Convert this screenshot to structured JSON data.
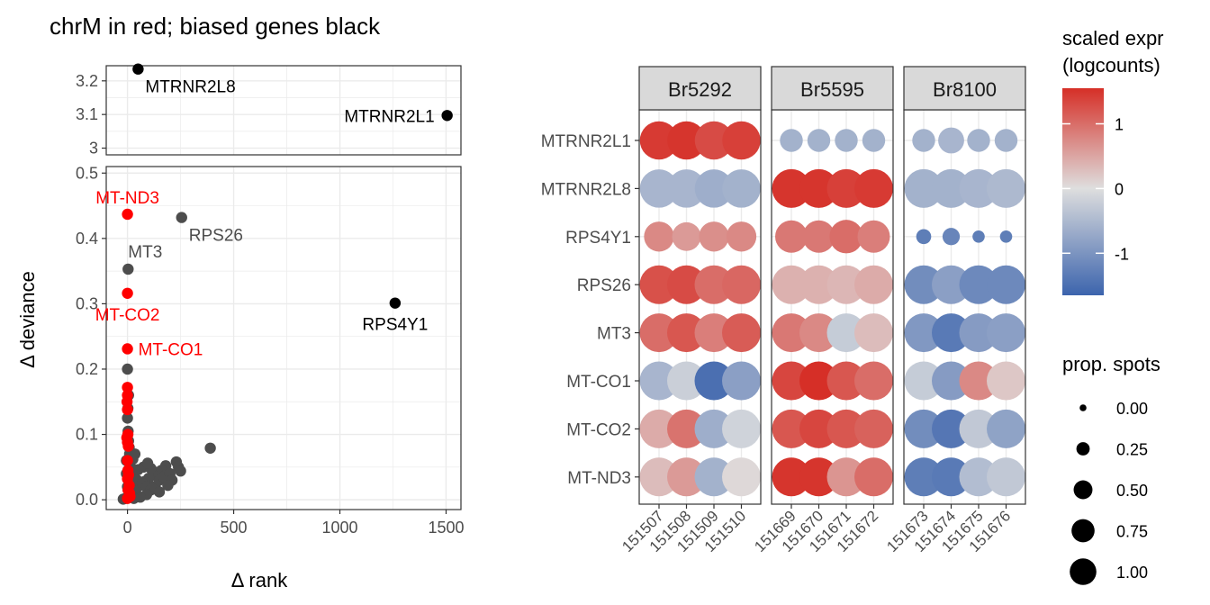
{
  "colors": {
    "chrM": "#ff0000",
    "biased": "#000000",
    "other": "#4d4d4d",
    "grid": "#ebebeb",
    "panel_border": "#333333",
    "strip_fill": "#d9d9d9",
    "scale_low": "#3c64ad",
    "scale_mid": "#dedede",
    "scale_high": "#d62f27"
  },
  "chart_data": [
    {
      "type": "scatter",
      "title": "chrM in red; biased genes black",
      "xlabel": "Δ rank",
      "ylabel": "Δ deviance",
      "xlim": [
        -100,
        1570
      ],
      "x_ticks": [
        "0",
        "500",
        "1000",
        "1500"
      ],
      "x_tick_values": [
        0,
        500,
        1000,
        1500
      ],
      "y_break": true,
      "top_panel": {
        "ylim": [
          2.98,
          3.245
        ],
        "y_ticks": [
          "3",
          "3.1",
          "3.2"
        ],
        "y_tick_values": [
          3.0,
          3.1,
          3.2
        ]
      },
      "bottom_panel": {
        "ylim": [
          -0.015,
          0.51
        ],
        "y_ticks": [
          "0.0",
          "0.1",
          "0.2",
          "0.3",
          "0.4",
          "0.5"
        ],
        "y_tick_values": [
          0,
          0.1,
          0.2,
          0.3,
          0.4,
          0.5
        ]
      },
      "grid": true,
      "labeled_points": [
        {
          "gene": "MTRNR2L8",
          "x": 50,
          "y": 3.235,
          "group": "biased",
          "label_pos": "below-right"
        },
        {
          "gene": "MTRNR2L1",
          "x": 1505,
          "y": 3.097,
          "group": "biased",
          "label_pos": "left"
        },
        {
          "gene": "MT-ND3",
          "x": 0,
          "y": 0.437,
          "group": "chrM",
          "label_pos": "above"
        },
        {
          "gene": "RPS26",
          "x": 255,
          "y": 0.432,
          "group": "other",
          "label_pos": "below-right"
        },
        {
          "gene": "MT3",
          "x": 3,
          "y": 0.353,
          "group": "other",
          "label_pos": "above-right"
        },
        {
          "gene": "MT-CO2",
          "x": 0,
          "y": 0.316,
          "group": "chrM",
          "label_pos": "below"
        },
        {
          "gene": "RPS4Y1",
          "x": 1260,
          "y": 0.301,
          "group": "biased",
          "label_pos": "below"
        },
        {
          "gene": "MT-CO1",
          "x": 0,
          "y": 0.231,
          "group": "chrM",
          "label_pos": "right"
        }
      ],
      "other_points": [
        [
          0,
          0.2
        ],
        [
          5,
          0.16
        ],
        [
          2,
          0.14
        ],
        [
          0,
          0.125
        ],
        [
          3,
          0.105
        ],
        [
          390,
          0.079
        ],
        [
          230,
          0.058
        ],
        [
          240,
          0.05
        ],
        [
          180,
          0.052
        ],
        [
          160,
          0.045
        ],
        [
          140,
          0.042
        ],
        [
          120,
          0.038
        ],
        [
          100,
          0.033
        ],
        [
          80,
          0.028
        ],
        [
          60,
          0.022
        ],
        [
          40,
          0.016
        ],
        [
          20,
          0.01
        ],
        [
          10,
          0.005
        ],
        [
          -10,
          0.002
        ],
        [
          -20,
          0.001
        ],
        [
          5,
          0.09
        ],
        [
          8,
          0.08
        ],
        [
          10,
          0.07
        ],
        [
          12,
          0.06
        ],
        [
          15,
          0.05
        ],
        [
          20,
          0.04
        ],
        [
          30,
          0.035
        ],
        [
          45,
          0.03
        ],
        [
          70,
          0.025
        ],
        [
          90,
          0.02
        ],
        [
          110,
          0.015
        ],
        [
          130,
          0.02
        ],
        [
          150,
          0.03
        ],
        [
          170,
          0.035
        ],
        [
          200,
          0.04
        ],
        [
          210,
          0.03
        ],
        [
          150,
          0.012
        ],
        [
          90,
          0.008
        ],
        [
          60,
          0.004
        ],
        [
          30,
          0.002
        ],
        [
          0,
          0.003
        ],
        [
          3,
          0.015
        ],
        [
          6,
          0.028
        ],
        [
          50,
          0.046
        ],
        [
          75,
          0.05
        ],
        [
          25,
          0.062
        ],
        [
          35,
          0.07
        ],
        [
          -5,
          0.06
        ],
        [
          -5,
          0.04
        ],
        [
          0,
          0.02
        ],
        [
          110,
          0.048
        ],
        [
          95,
          0.056
        ],
        [
          190,
          0.022
        ],
        [
          250,
          0.044
        ]
      ],
      "chrM_points": [
        [
          0,
          0.172
        ],
        [
          0,
          0.16
        ],
        [
          -2,
          0.15
        ],
        [
          0,
          0.138
        ],
        [
          2,
          0.1
        ],
        [
          -3,
          0.095
        ],
        [
          0,
          0.088
        ],
        [
          4,
          0.082
        ],
        [
          0,
          0.06
        ],
        [
          2,
          0.045
        ],
        [
          5,
          0.038
        ],
        [
          0,
          0.032
        ],
        [
          8,
          0.022
        ],
        [
          3,
          0.015
        ],
        [
          10,
          0.01
        ],
        [
          12,
          0.005
        ],
        [
          0,
          0.002
        ]
      ]
    },
    {
      "type": "dot",
      "genes": [
        "MTRNR2L1",
        "MTRNR2L8",
        "RPS4Y1",
        "RPS26",
        "MT3",
        "MT-CO1",
        "MT-CO2",
        "MT-ND3"
      ],
      "facets": [
        {
          "name": "Br5292",
          "samples": [
            "151507",
            "151508",
            "151509",
            "151510"
          ]
        },
        {
          "name": "Br5595",
          "samples": [
            "151669",
            "151670",
            "151671",
            "151672"
          ]
        },
        {
          "name": "Br8100",
          "samples": [
            "151673",
            "151674",
            "151675",
            "151676"
          ]
        }
      ],
      "size_legend": {
        "title": "prop. spots",
        "labels": [
          "0.00",
          "0.25",
          "0.50",
          "0.75",
          "1.00"
        ],
        "values": [
          0,
          0.25,
          0.5,
          0.75,
          1.0
        ]
      },
      "color_legend": {
        "title_line1": "scaled expr",
        "title_line2": "(logcounts)",
        "labels": [
          "1",
          "0",
          "-1"
        ],
        "values": [
          1,
          0,
          -1
        ],
        "range": [
          -1.65,
          1.55
        ]
      },
      "expr": [
        [
          1.45,
          1.5,
          1.3,
          1.4,
          -0.6,
          -0.6,
          -0.6,
          -0.6,
          -0.6,
          -0.55,
          -0.6,
          -0.6
        ],
        [
          -0.55,
          -0.55,
          -0.65,
          -0.6,
          1.5,
          1.5,
          1.4,
          1.45,
          -0.6,
          -0.6,
          -0.55,
          -0.5
        ],
        [
          0.75,
          0.6,
          0.7,
          0.75,
          0.9,
          0.9,
          1.0,
          0.85,
          -1.3,
          -1.2,
          -1.3,
          -1.3
        ],
        [
          1.25,
          1.3,
          1.0,
          1.05,
          0.4,
          0.4,
          0.35,
          0.45,
          -1.1,
          -0.85,
          -1.15,
          -1.15
        ],
        [
          1.0,
          1.2,
          0.85,
          1.15,
          0.9,
          0.75,
          -0.25,
          0.3,
          -0.95,
          -1.35,
          -0.9,
          -0.85
        ],
        [
          -0.55,
          -0.2,
          -1.5,
          -0.85,
          1.35,
          1.55,
          1.2,
          1.0,
          -0.25,
          -0.9,
          0.75,
          0.2
        ],
        [
          0.45,
          0.95,
          -0.65,
          -0.15,
          1.2,
          1.35,
          1.2,
          1.1,
          -1.1,
          -1.4,
          -0.3,
          -0.8
        ],
        [
          0.3,
          0.6,
          -0.6,
          0.05,
          1.5,
          1.5,
          0.65,
          1.0,
          -1.3,
          -1.35,
          -0.45,
          -0.3
        ]
      ],
      "prop": [
        [
          0.98,
          0.98,
          0.98,
          0.98,
          0.35,
          0.35,
          0.35,
          0.35,
          0.35,
          0.45,
          0.35,
          0.35
        ],
        [
          0.98,
          0.98,
          0.98,
          0.98,
          1.0,
          1.0,
          1.0,
          1.0,
          1.0,
          1.0,
          1.0,
          1.0
        ],
        [
          0.6,
          0.55,
          0.6,
          0.6,
          0.7,
          0.7,
          0.75,
          0.7,
          0.15,
          0.2,
          0.1,
          0.1
        ],
        [
          1.0,
          1.0,
          1.0,
          1.0,
          1.0,
          1.0,
          1.0,
          1.0,
          1.0,
          1.0,
          1.0,
          1.0
        ],
        [
          1.0,
          1.0,
          1.0,
          1.0,
          1.0,
          1.0,
          1.0,
          1.0,
          1.0,
          1.0,
          1.0,
          1.0
        ],
        [
          1.0,
          1.0,
          1.0,
          1.0,
          1.0,
          1.0,
          1.0,
          1.0,
          1.0,
          1.0,
          1.0,
          1.0
        ],
        [
          1.0,
          1.0,
          1.0,
          1.0,
          1.0,
          1.0,
          1.0,
          1.0,
          1.0,
          1.0,
          1.0,
          1.0
        ],
        [
          1.0,
          1.0,
          1.0,
          1.0,
          1.0,
          1.0,
          1.0,
          1.0,
          1.0,
          1.0,
          1.0,
          1.0
        ]
      ]
    }
  ]
}
